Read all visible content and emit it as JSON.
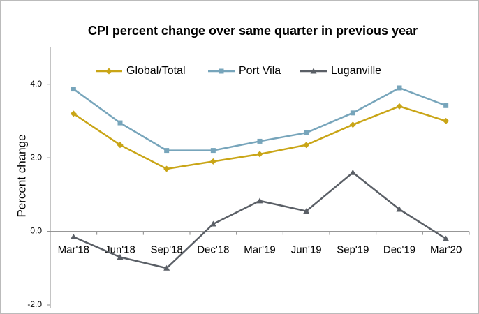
{
  "chart_data": {
    "type": "line",
    "title": "CPI percent change over same quarter in previous year",
    "y_label": "Percent change",
    "categories": [
      "Mar'18",
      "Jun'18",
      "Sep'18",
      "Dec'18",
      "Mar'19",
      "Jun'19",
      "Sep'19",
      "Dec'19",
      "Mar'20"
    ],
    "series": [
      {
        "name": "Global/Total",
        "color": "#c9a516",
        "marker": "diamond",
        "values": [
          3.2,
          2.35,
          1.7,
          1.9,
          2.1,
          2.35,
          2.9,
          3.4,
          3.0
        ]
      },
      {
        "name": "Port Vila",
        "color": "#77a5bb",
        "marker": "square",
        "values": [
          3.87,
          2.95,
          2.2,
          2.2,
          2.45,
          2.68,
          3.22,
          3.9,
          3.42
        ]
      },
      {
        "name": "Luganville",
        "color": "#5a5f66",
        "marker": "triangle",
        "values": [
          -0.15,
          -0.7,
          -1.0,
          0.2,
          0.83,
          0.55,
          1.6,
          0.6,
          -0.2
        ]
      }
    ],
    "ylim": [
      -2,
      5
    ],
    "yticks": [
      {
        "value": -2,
        "label": "-2.0"
      },
      {
        "value": 0,
        "label": "0.0"
      },
      {
        "value": 2,
        "label": "2.0"
      },
      {
        "value": 4,
        "label": "4.0"
      }
    ],
    "grid": false,
    "legend": "top"
  }
}
